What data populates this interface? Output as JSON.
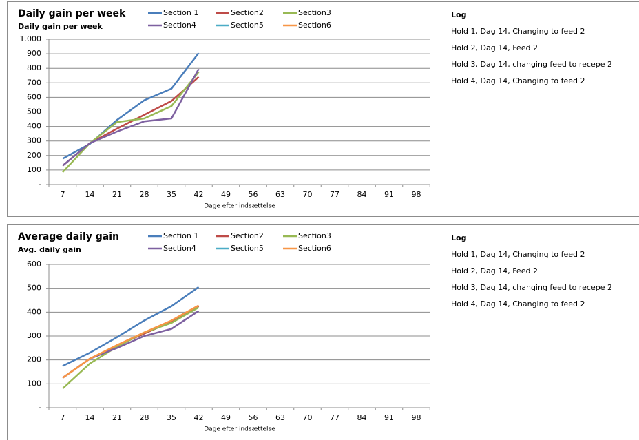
{
  "chart_data": [
    {
      "type": "line",
      "title": "Daily gain per week",
      "y_label": "Daily gain per week",
      "x_label": "Dage efter indsættelse",
      "categories": [
        "7",
        "14",
        "21",
        "28",
        "35",
        "42",
        "49",
        "56",
        "63",
        "70",
        "77",
        "84",
        "91",
        "98"
      ],
      "ylim": [
        0,
        1000
      ],
      "yticks": [
        {
          "value": 0,
          "label": "-"
        },
        100,
        200,
        300,
        400,
        500,
        600,
        700,
        800,
        900,
        {
          "value": 1000,
          "label": "1.000"
        }
      ],
      "grid": true,
      "series": [
        {
          "name": "Section 1",
          "color": "#4a7ebb",
          "values": [
            178,
            280,
            445,
            580,
            660,
            905,
            null,
            null,
            null,
            null,
            null,
            null,
            null,
            null
          ]
        },
        {
          "name": "Section2",
          "color": "#be4b48",
          "values": [
            130,
            285,
            385,
            480,
            575,
            740,
            null,
            null,
            null,
            null,
            null,
            null,
            null,
            null
          ]
        },
        {
          "name": "Section3",
          "color": "#98b954",
          "values": [
            85,
            285,
            430,
            455,
            540,
            775,
            null,
            null,
            null,
            null,
            null,
            null,
            null,
            null
          ]
        },
        {
          "name": "Section4",
          "color": "#7d60a0",
          "values": [
            130,
            285,
            365,
            435,
            455,
            795,
            null,
            null,
            null,
            null,
            null,
            null,
            null,
            null
          ]
        },
        {
          "name": "Section5",
          "color": "#4bacc6",
          "values": [
            null,
            null,
            null,
            null,
            null,
            null,
            null,
            null,
            null,
            null,
            null,
            null,
            null,
            null
          ]
        },
        {
          "name": "Section6",
          "color": "#f79646",
          "values": [
            null,
            null,
            null,
            null,
            null,
            null,
            null,
            null,
            null,
            null,
            null,
            null,
            null,
            null
          ]
        }
      ]
    },
    {
      "type": "line",
      "title": "Average daily gain",
      "y_label": "Avg. daily gain",
      "x_label": "Dage efter indsættelse",
      "categories": [
        "7",
        "14",
        "21",
        "28",
        "35",
        "42",
        "49",
        "56",
        "63",
        "70",
        "77",
        "84",
        "91",
        "98"
      ],
      "ylim": [
        0,
        600
      ],
      "yticks": [
        {
          "value": 0,
          "label": "-"
        },
        100,
        200,
        300,
        400,
        500,
        600
      ],
      "grid": true,
      "series": [
        {
          "name": "Section 1",
          "color": "#4a7ebb",
          "values": [
            175,
            230,
            295,
            365,
            425,
            505,
            null,
            null,
            null,
            null,
            null,
            null,
            null,
            null
          ]
        },
        {
          "name": "Section2",
          "color": "#be4b48",
          "values": [
            125,
            205,
            260,
            310,
            360,
            425,
            null,
            null,
            null,
            null,
            null,
            null,
            null,
            null
          ]
        },
        {
          "name": "Section3",
          "color": "#98b954",
          "values": [
            80,
            185,
            255,
            315,
            355,
            420,
            null,
            null,
            null,
            null,
            null,
            null,
            null,
            null
          ]
        },
        {
          "name": "Section4",
          "color": "#7d60a0",
          "values": [
            125,
            205,
            250,
            300,
            330,
            405,
            null,
            null,
            null,
            null,
            null,
            null,
            null,
            null
          ]
        },
        {
          "name": "Section5",
          "color": "#4bacc6",
          "values": [
            null,
            null,
            null,
            null,
            null,
            null,
            null,
            null,
            null,
            null,
            null,
            null,
            null,
            null
          ]
        },
        {
          "name": "Section6",
          "color": "#f79646",
          "values": [
            125,
            205,
            262,
            315,
            365,
            428,
            null,
            null,
            null,
            null,
            null,
            null,
            null,
            null
          ]
        }
      ]
    }
  ],
  "logs": [
    {
      "title": "Log",
      "entries": [
        "Hold 1, Dag 14, Changing to feed 2",
        "Hold 2, Dag 14, Feed 2",
        "Hold 3, Dag 14, changing feed to recepe 2",
        "Hold 4, Dag 14, Changing to feed 2"
      ]
    },
    {
      "title": "Log",
      "entries": [
        "Hold 1, Dag 14, Changing to feed 2",
        "Hold 2, Dag 14, Feed 2",
        "Hold 3, Dag 14, changing feed to recepe 2",
        "Hold 4, Dag 14, Changing to feed 2"
      ]
    }
  ]
}
